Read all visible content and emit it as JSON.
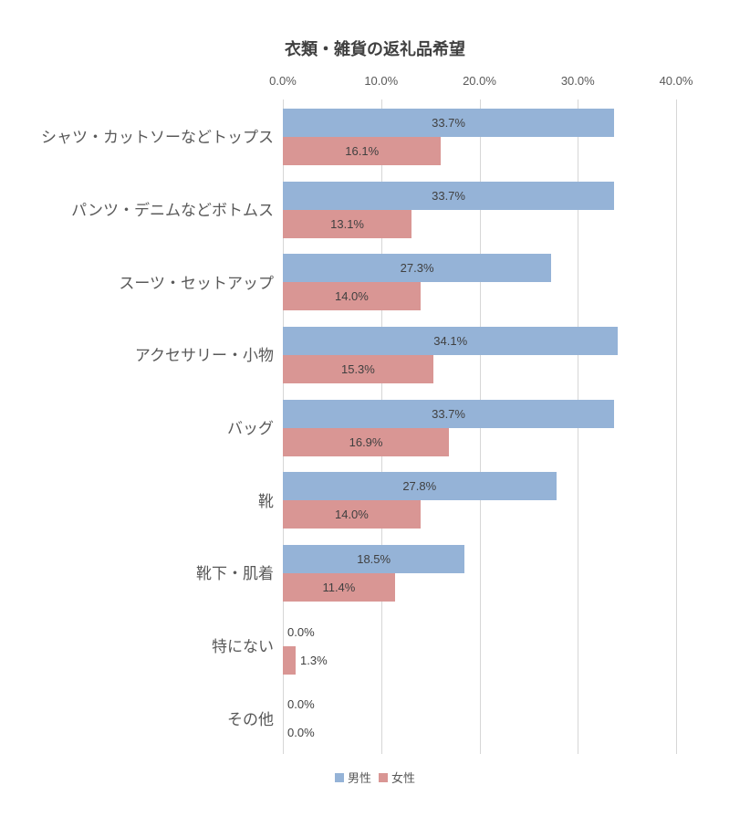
{
  "chart_data": {
    "type": "bar",
    "orientation": "horizontal",
    "title": "衣類・雑貨の返礼品希望",
    "categories": [
      "シャツ・カットソーなどトップス",
      "パンツ・デニムなどボトムス",
      "スーツ・セットアップ",
      "アクセサリー・小物",
      "バッグ",
      "靴",
      "靴下・肌着",
      "特にない",
      "その他"
    ],
    "series": [
      {
        "name": "男性",
        "color": "#95B3D7",
        "values": [
          33.7,
          33.7,
          27.3,
          34.1,
          33.7,
          27.8,
          18.5,
          0.0,
          0.0
        ],
        "labels": [
          "33.7%",
          "33.7%",
          "27.3%",
          "34.1%",
          "33.7%",
          "27.8%",
          "18.5%",
          "0.0%",
          "0.0%"
        ]
      },
      {
        "name": "女性",
        "color": "#D99694",
        "values": [
          16.1,
          13.1,
          14.0,
          15.3,
          16.9,
          14.0,
          11.4,
          1.3,
          0.0
        ],
        "labels": [
          "16.1%",
          "13.1%",
          "14.0%",
          "15.3%",
          "16.9%",
          "14.0%",
          "11.4%",
          "1.3%",
          "0.0%"
        ]
      }
    ],
    "x_axis": {
      "min": 0,
      "max": 40,
      "tick_labels": [
        "0.0%",
        "10.0%",
        "20.0%",
        "30.0%",
        "40.0%"
      ]
    },
    "grid": true,
    "data_labels": true,
    "legend_position": "bottom",
    "colors": {
      "background": "#FFFFFF",
      "grid": "#D6D6D6",
      "title_text": "#404040",
      "axis_text": "#595959",
      "category_text": "#595959",
      "data_label_text": "#404040"
    }
  }
}
